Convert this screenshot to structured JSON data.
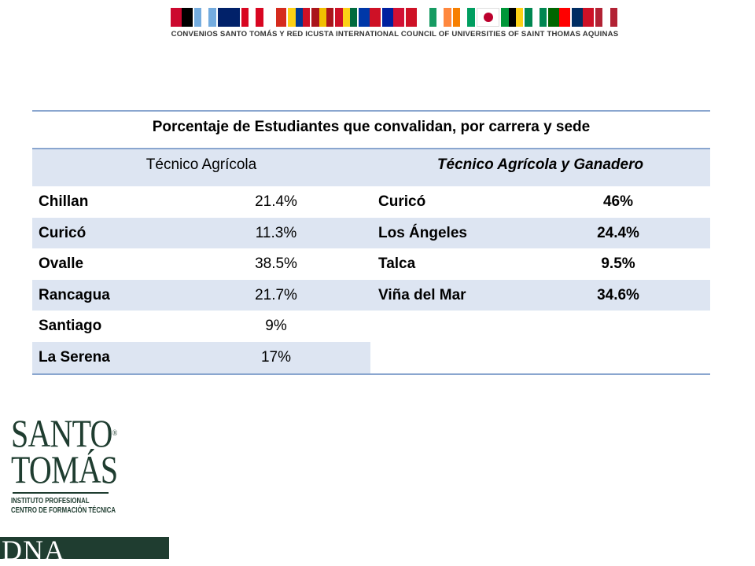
{
  "banner": {
    "caption": "CONVENIOS SANTO TOMÁS Y RED ICUSTA INTERNATIONAL COUNCIL OF UNIVERSITIES OF SAINT THOMAS AQUINAS",
    "flags": [
      {
        "name": "angola",
        "colors": [
          "#cc092f",
          "#000000"
        ]
      },
      {
        "name": "argentina",
        "colors": [
          "#74acdf",
          "#ffffff",
          "#74acdf"
        ]
      },
      {
        "name": "australia",
        "colors": [
          "#012169",
          "#012169"
        ]
      },
      {
        "name": "canada",
        "colors": [
          "#d80621",
          "#ffffff",
          "#d80621"
        ]
      },
      {
        "name": "chile",
        "colors": [
          "#ffffff",
          "#d52b1e"
        ]
      },
      {
        "name": "colombia",
        "colors": [
          "#fcd116",
          "#003893",
          "#ce1126"
        ]
      },
      {
        "name": "spain",
        "colors": [
          "#aa151b",
          "#f1bf00",
          "#aa151b"
        ]
      },
      {
        "name": "ghana",
        "colors": [
          "#ce1126",
          "#fcd116",
          "#006b3f"
        ]
      },
      {
        "name": "philippines",
        "colors": [
          "#0038a8",
          "#ce1126"
        ]
      },
      {
        "name": "haiti",
        "colors": [
          "#00209f",
          "#d21034"
        ]
      },
      {
        "name": "indonesia",
        "colors": [
          "#ce1126",
          "#ffffff"
        ]
      },
      {
        "name": "ireland",
        "colors": [
          "#169b62",
          "#ffffff",
          "#ff883e"
        ]
      },
      {
        "name": "ivory-coast",
        "colors": [
          "#f77f00",
          "#ffffff",
          "#009e60"
        ]
      },
      {
        "name": "japan",
        "colors": [
          "#ffffff"
        ]
      },
      {
        "name": "mozambique",
        "colors": [
          "#009739",
          "#000000",
          "#fcd116"
        ]
      },
      {
        "name": "nigeria",
        "colors": [
          "#008751",
          "#ffffff",
          "#008751"
        ]
      },
      {
        "name": "portugal",
        "colors": [
          "#006600",
          "#ff0000"
        ]
      },
      {
        "name": "dominican-republic",
        "colors": [
          "#002d62",
          "#ce1126"
        ]
      },
      {
        "name": "usa",
        "colors": [
          "#b22234",
          "#ffffff",
          "#b22234"
        ]
      }
    ]
  },
  "table": {
    "title": "Porcentaje de Estudiantes que convalidan, por carrera y sede",
    "header_left": "Técnico Agrícola",
    "header_right": "Técnico Agrícola y Ganadero",
    "rows": [
      {
        "left_name": "Chillan",
        "left_value": "21.4%",
        "right_name": "Curicó",
        "right_value": "46%"
      },
      {
        "left_name": "Curicó",
        "left_value": "11.3%",
        "right_name": "Los Ángeles",
        "right_value": "24.4%"
      },
      {
        "left_name": "Ovalle",
        "left_value": "38.5%",
        "right_name": "Talca",
        "right_value": "9.5%"
      },
      {
        "left_name": "Rancagua",
        "left_value": "21.7%",
        "right_name": "Viña del Mar",
        "right_value": "34.6%"
      },
      {
        "left_name": "Santiago",
        "left_value": "9%",
        "right_name": "",
        "right_value": ""
      },
      {
        "left_name": "La Serena",
        "left_value": "17%",
        "right_name": "",
        "right_value": ""
      }
    ]
  },
  "logo": {
    "line1": "SANTO",
    "line2": "TOMÁS",
    "registered": "®",
    "sub1": "INSTITUTO PROFESIONAL",
    "sub2": "CENTRO DE FORMACIÓN TÉCNICA",
    "dna": "DNA"
  },
  "colors": {
    "table_shade": "#dde5f2",
    "table_rule": "#8aa6cf",
    "logo_green": "#1f3d30"
  }
}
